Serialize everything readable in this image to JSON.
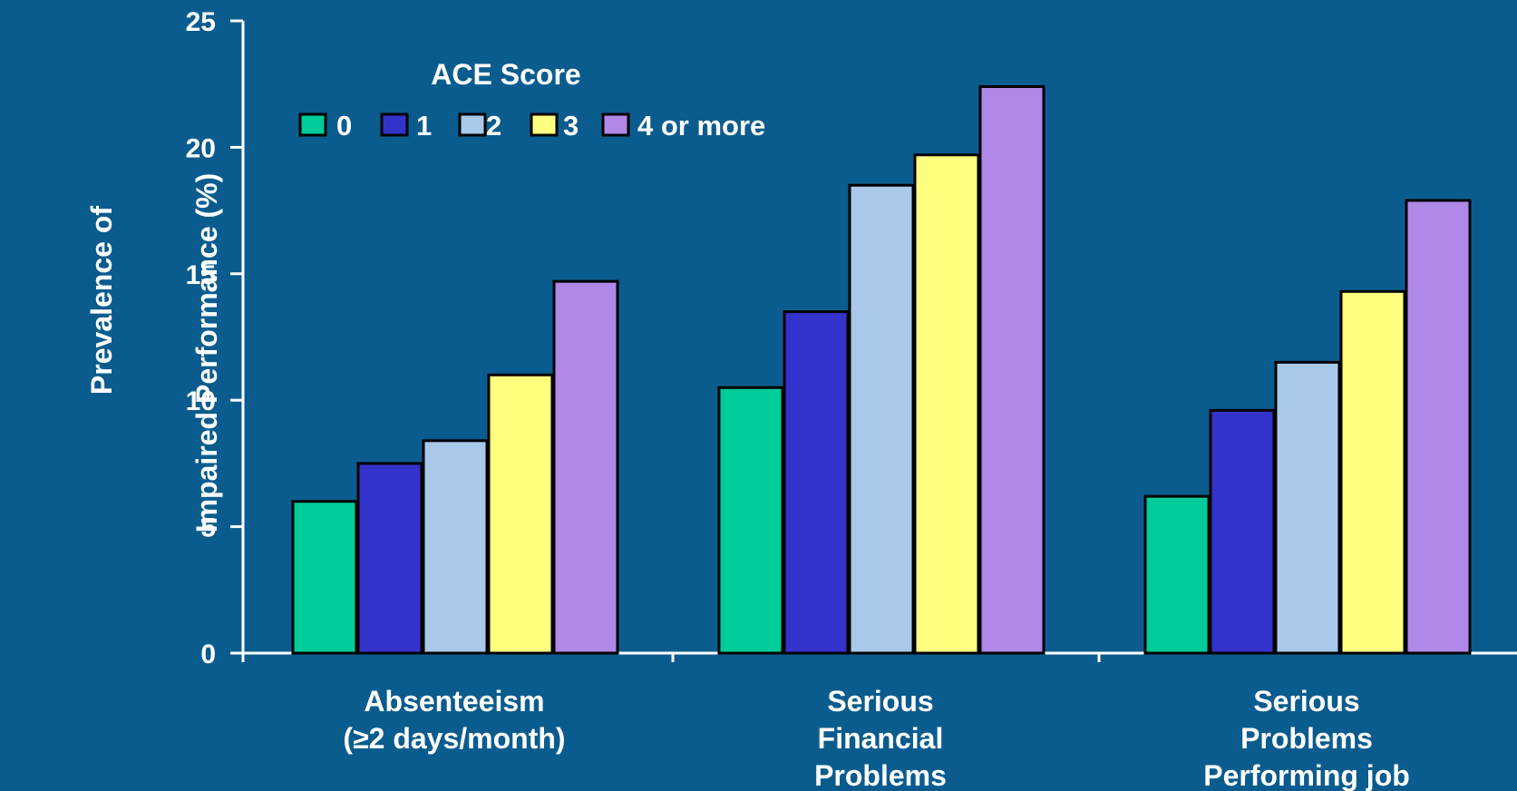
{
  "chart_data": {
    "type": "bar",
    "ylabel": [
      "Prevalence of",
      "Impaired Performance (%)"
    ],
    "xlabel": "",
    "ylim": [
      0,
      25
    ],
    "yticks": [
      0,
      5,
      10,
      15,
      20,
      25
    ],
    "grid": false,
    "legend": {
      "title": "ACE Score",
      "placement": "top-left"
    },
    "categories": [
      [
        "Absenteeism",
        "(≥2 days/month)"
      ],
      [
        "Serious",
        "Financial",
        "Problems"
      ],
      [
        "Serious",
        "Problems",
        "Performing job"
      ]
    ],
    "series": [
      {
        "name": "0",
        "color": "#00CC99",
        "values": [
          6.0,
          10.5,
          6.2
        ]
      },
      {
        "name": "1",
        "color": "#3333CC",
        "values": [
          7.5,
          13.5,
          9.6
        ]
      },
      {
        "name": "2",
        "color": "#A9C8EA",
        "values": [
          8.4,
          18.5,
          11.5
        ]
      },
      {
        "name": "3",
        "color": "#FFFF80",
        "values": [
          11.0,
          19.7,
          14.3
        ]
      },
      {
        "name": "4 or more",
        "color": "#B088E8",
        "values": [
          14.7,
          22.4,
          17.9
        ]
      }
    ]
  }
}
